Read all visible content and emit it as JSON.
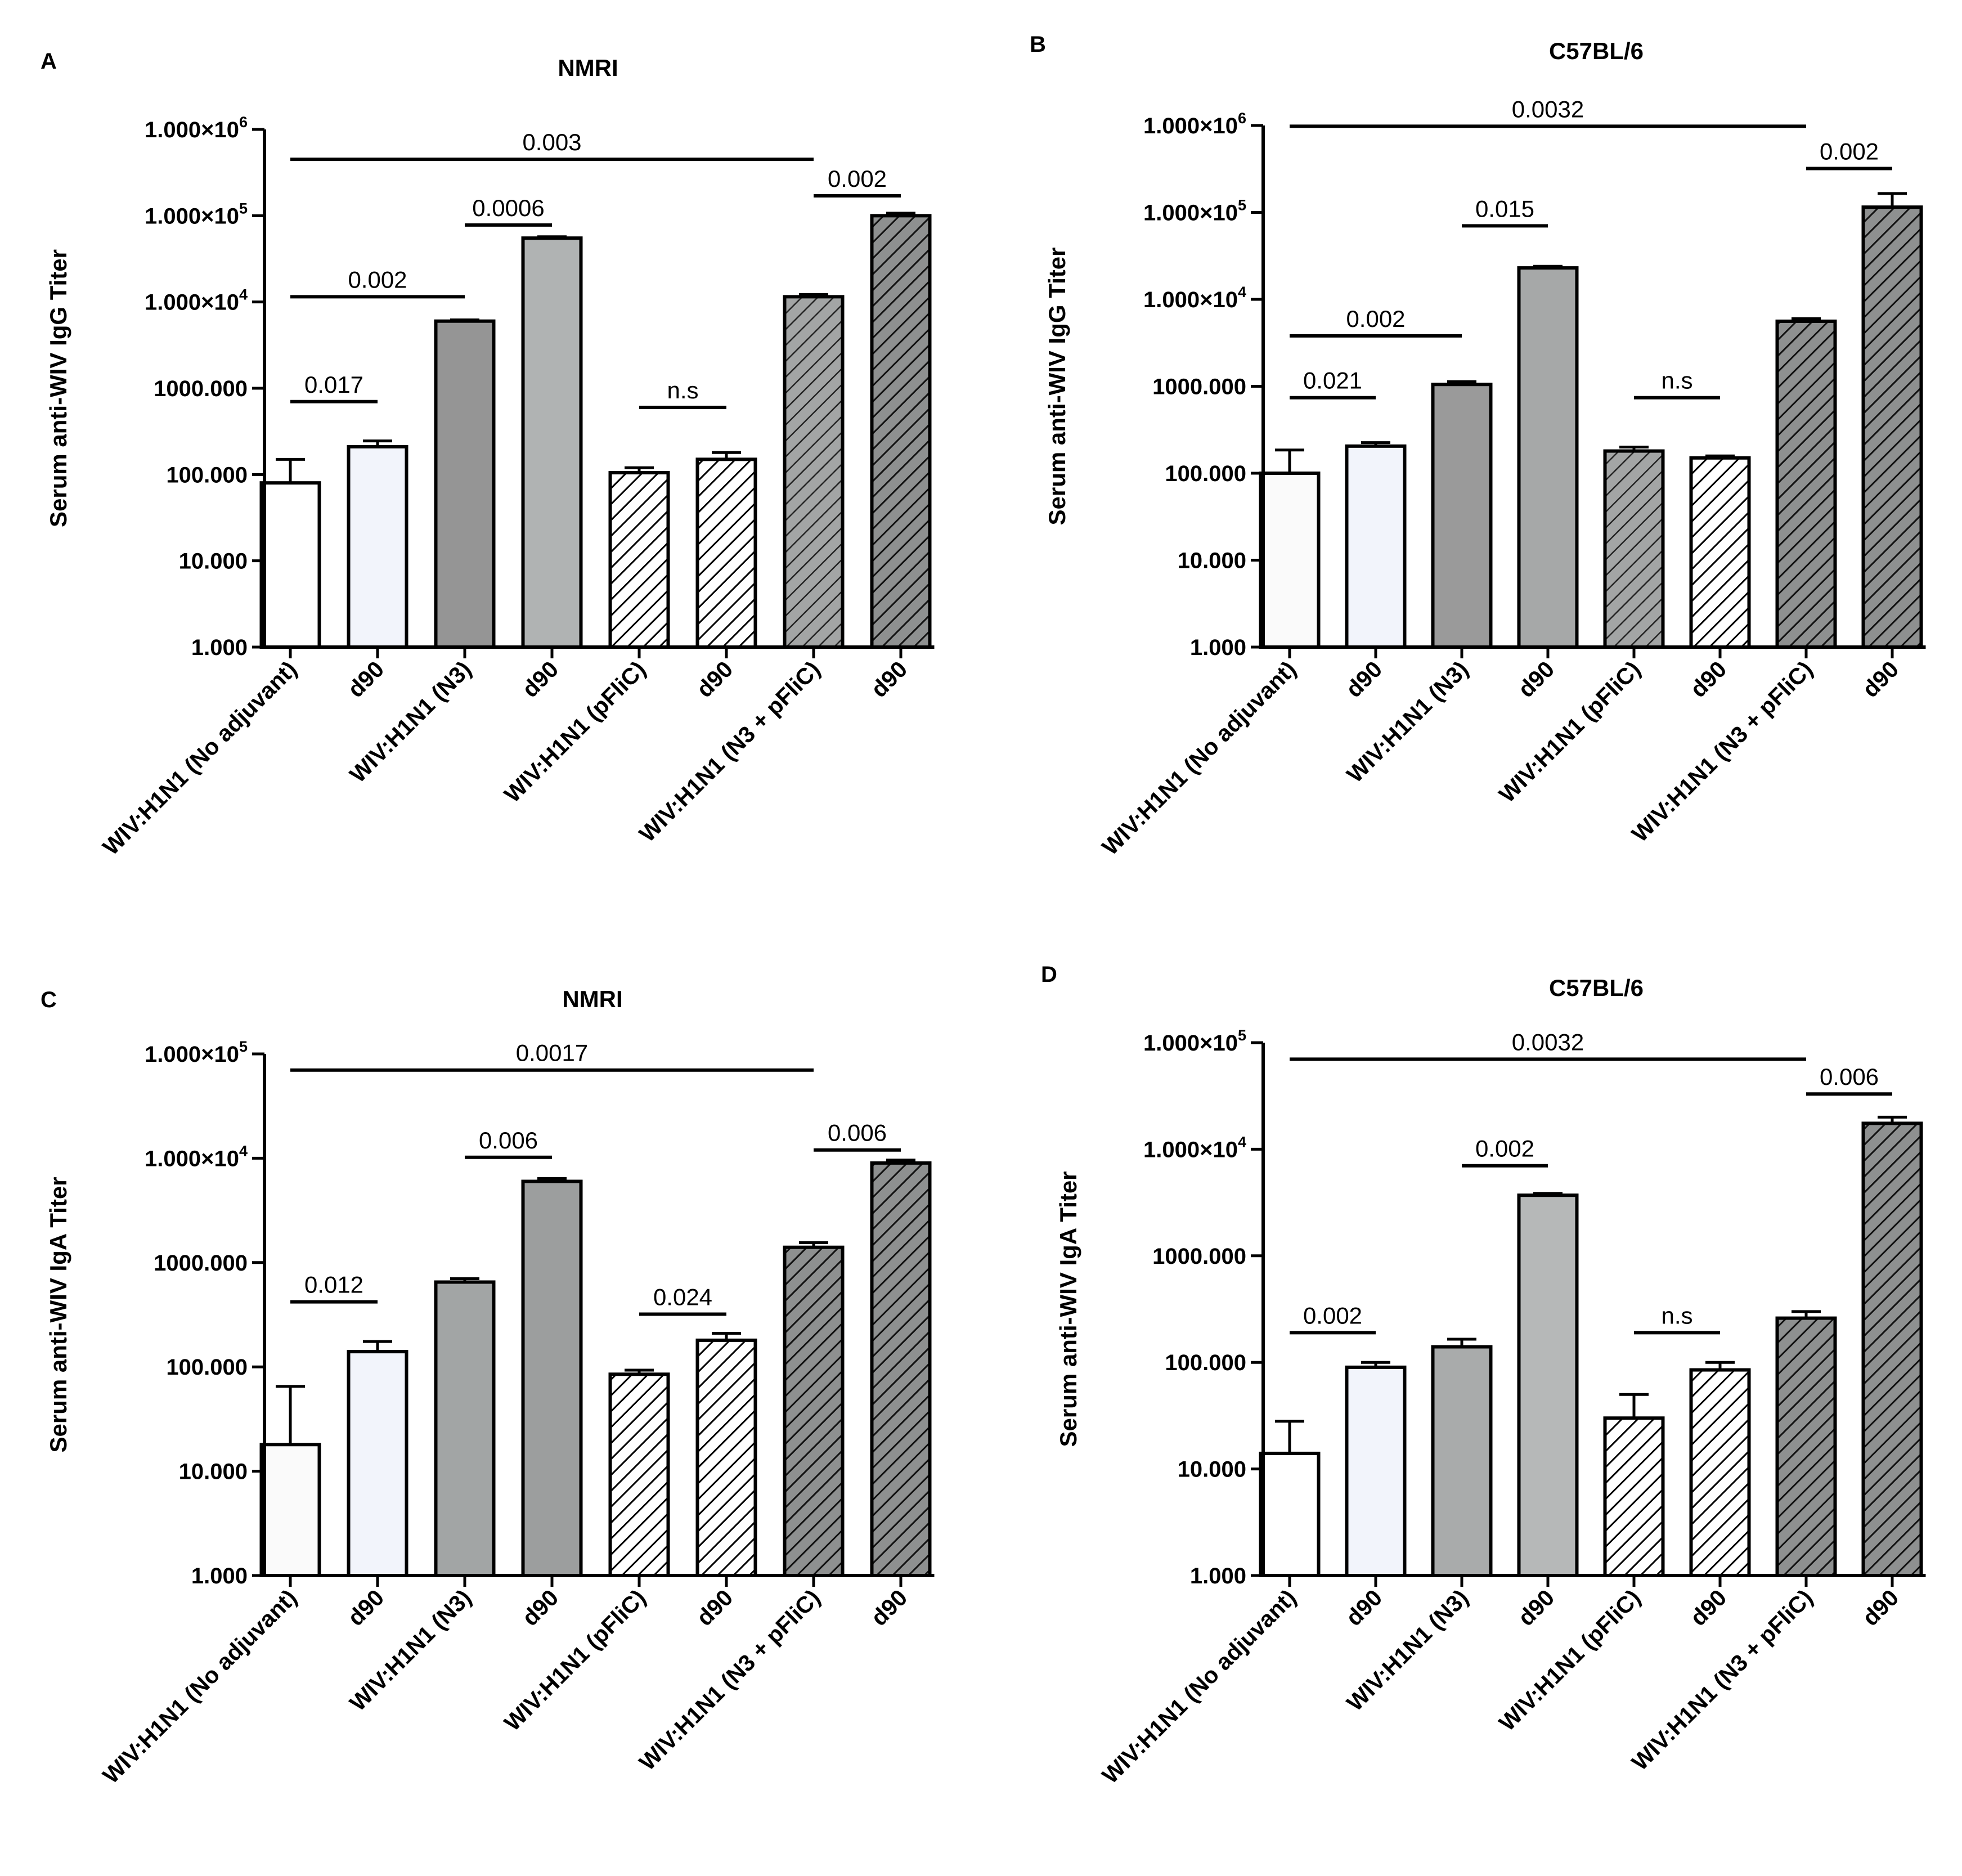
{
  "chart_data": [
    {
      "panel": "A",
      "title": "NMRI",
      "type": "bar",
      "ylabel": "Serum anti-WIV IgG Titer",
      "yscale": "log",
      "ylim": [
        1,
        1000000
      ],
      "ytick_values": [
        1,
        10,
        100,
        1000,
        10000,
        100000,
        1000000
      ],
      "ytick_labels": [
        {
          "main": "1.000",
          "sup": ""
        },
        {
          "main": "10.000",
          "sup": ""
        },
        {
          "main": "100.000",
          "sup": ""
        },
        {
          "main": "1000.000",
          "sup": ""
        },
        {
          "main": "1.000×10",
          "sup": "4"
        },
        {
          "main": "1.000×10",
          "sup": "5"
        },
        {
          "main": "1.000×10",
          "sup": "6"
        }
      ],
      "categories": [
        "WIV:H1N1 (No adjuvant)",
        "d90",
        "WIV:H1N1 (N3)",
        "d90",
        "WIV:H1N1 (pFliC)",
        "d90",
        "WIV:H1N1 (N3 + pFliC)",
        "d90"
      ],
      "values": [
        80,
        210,
        6000,
        55000,
        105,
        150,
        11500,
        100000
      ],
      "errors": [
        150,
        245,
        6200,
        57000,
        120,
        180,
        12200,
        107000
      ],
      "fills": [
        "#ffffff",
        "#f2f4fb",
        "#959595",
        "#b0b3b3",
        "hatch-white",
        "hatch-white",
        "hatch-gray-light",
        "hatch-gray"
      ],
      "comparisons": [
        {
          "from": 0,
          "to": 1,
          "label": "0.017",
          "y": 700
        },
        {
          "from": 0,
          "to": 2,
          "label": "0.002",
          "y": 11500
        },
        {
          "from": 2,
          "to": 3,
          "label": "0.0006",
          "y": 78000
        },
        {
          "from": 4,
          "to": 5,
          "label": "n.s",
          "y": 600
        },
        {
          "from": 6,
          "to": 7,
          "label": "0.002",
          "y": 170000
        },
        {
          "from": 0,
          "to": 6,
          "label": "0.003",
          "y": 450000
        }
      ]
    },
    {
      "panel": "B",
      "title": "C57BL/6",
      "type": "bar",
      "ylabel": "Serum anti-WIV IgG Titer",
      "yscale": "log",
      "ylim": [
        1,
        1000000
      ],
      "ytick_values": [
        1,
        10,
        100,
        1000,
        10000,
        100000,
        1000000
      ],
      "ytick_labels": [
        {
          "main": "1.000",
          "sup": ""
        },
        {
          "main": "10.000",
          "sup": ""
        },
        {
          "main": "100.000",
          "sup": ""
        },
        {
          "main": "1000.000",
          "sup": ""
        },
        {
          "main": "1.000×10",
          "sup": "4"
        },
        {
          "main": "1.000×10",
          "sup": "5"
        },
        {
          "main": "1.000×10",
          "sup": "6"
        }
      ],
      "categories": [
        "WIV:H1N1 (No adjuvant)",
        "d90",
        "WIV:H1N1 (N3)",
        "d90",
        "WIV:H1N1 (pFliC)",
        "d90",
        "WIV:H1N1 (N3 + pFliC)",
        "d90"
      ],
      "values": [
        100,
        205,
        1050,
        23000,
        180,
        150,
        5600,
        115000
      ],
      "errors": [
        185,
        225,
        1130,
        24000,
        200,
        158,
        6000,
        165000
      ],
      "fills": [
        "#fafafa",
        "#f2f4fb",
        "#9a9a9a",
        "#a6a8a8",
        "hatch-gray-light",
        "hatch-white",
        "hatch-gray",
        "hatch-gray"
      ],
      "comparisons": [
        {
          "from": 0,
          "to": 1,
          "label": "0.021",
          "y": 740
        },
        {
          "from": 0,
          "to": 2,
          "label": "0.002",
          "y": 3800
        },
        {
          "from": 2,
          "to": 3,
          "label": "0.015",
          "y": 70000
        },
        {
          "from": 4,
          "to": 5,
          "label": "n.s",
          "y": 740
        },
        {
          "from": 6,
          "to": 7,
          "label": "0.002",
          "y": 320000
        },
        {
          "from": 0,
          "to": 6,
          "label": "0.0032",
          "y": 980000
        }
      ]
    },
    {
      "panel": "C",
      "title": "NMRI",
      "type": "bar",
      "ylabel": "Serum anti-WIV IgA Titer",
      "yscale": "log",
      "ylim": [
        1,
        100000
      ],
      "ytick_values": [
        1,
        10,
        100,
        1000,
        10000,
        100000
      ],
      "ytick_labels": [
        {
          "main": "1.000",
          "sup": ""
        },
        {
          "main": "10.000",
          "sup": ""
        },
        {
          "main": "100.000",
          "sup": ""
        },
        {
          "main": "1000.000",
          "sup": ""
        },
        {
          "main": "1.000×10",
          "sup": "4"
        },
        {
          "main": "1.000×10",
          "sup": "5"
        }
      ],
      "categories": [
        "WIV:H1N1 (No adjuvant)",
        "d90",
        "WIV:H1N1 (N3)",
        "d90",
        "WIV:H1N1 (pFliC)",
        "d90",
        "WIV:H1N1 (N3 + pFliC)",
        "d90"
      ],
      "values": [
        18,
        140,
        650,
        6000,
        85,
        180,
        1400,
        9000
      ],
      "errors": [
        65,
        175,
        700,
        6400,
        93,
        210,
        1550,
        9600
      ],
      "fills": [
        "#fafafa",
        "#f2f4fb",
        "#a2a5a5",
        "#9c9e9e",
        "hatch-white",
        "hatch-white",
        "hatch-gray",
        "hatch-gray"
      ],
      "comparisons": [
        {
          "from": 0,
          "to": 1,
          "label": "0.012",
          "y": 420
        },
        {
          "from": 2,
          "to": 3,
          "label": "0.006",
          "y": 10200
        },
        {
          "from": 4,
          "to": 5,
          "label": "0.024",
          "y": 320
        },
        {
          "from": 6,
          "to": 7,
          "label": "0.006",
          "y": 12000
        },
        {
          "from": 0,
          "to": 6,
          "label": "0.0017",
          "y": 70000
        }
      ]
    },
    {
      "panel": "D",
      "title": "C57BL/6",
      "type": "bar",
      "ylabel": "Serum anti-WIV IgA Titer",
      "yscale": "log",
      "ylim": [
        1,
        100000
      ],
      "ytick_values": [
        1,
        10,
        100,
        1000,
        10000,
        100000
      ],
      "ytick_labels": [
        {
          "main": "1.000",
          "sup": ""
        },
        {
          "main": "10.000",
          "sup": ""
        },
        {
          "main": "100.000",
          "sup": ""
        },
        {
          "main": "1000.000",
          "sup": ""
        },
        {
          "main": "1.000×10",
          "sup": "4"
        },
        {
          "main": "1.000×10",
          "sup": "5"
        }
      ],
      "categories": [
        "WIV:H1N1 (No adjuvant)",
        "d90",
        "WIV:H1N1 (N3)",
        "d90",
        "WIV:H1N1 (pFliC)",
        "d90",
        "WIV:H1N1 (N3 + pFliC)",
        "d90"
      ],
      "values": [
        14,
        90,
        140,
        3700,
        30,
        85,
        260,
        17500
      ],
      "errors": [
        28,
        100,
        165,
        3850,
        50,
        100,
        300,
        20000
      ],
      "fills": [
        "#ffffff",
        "#f2f4fb",
        "#a9abab",
        "#b6b8b8",
        "hatch-white",
        "hatch-white",
        "hatch-gray",
        "hatch-gray"
      ],
      "comparisons": [
        {
          "from": 0,
          "to": 1,
          "label": "0.002",
          "y": 190
        },
        {
          "from": 2,
          "to": 3,
          "label": "0.002",
          "y": 7000
        },
        {
          "from": 4,
          "to": 5,
          "label": "n.s",
          "y": 190
        },
        {
          "from": 6,
          "to": 7,
          "label": "0.006",
          "y": 33000
        },
        {
          "from": 0,
          "to": 6,
          "label": "0.0032",
          "y": 70000
        }
      ]
    }
  ]
}
